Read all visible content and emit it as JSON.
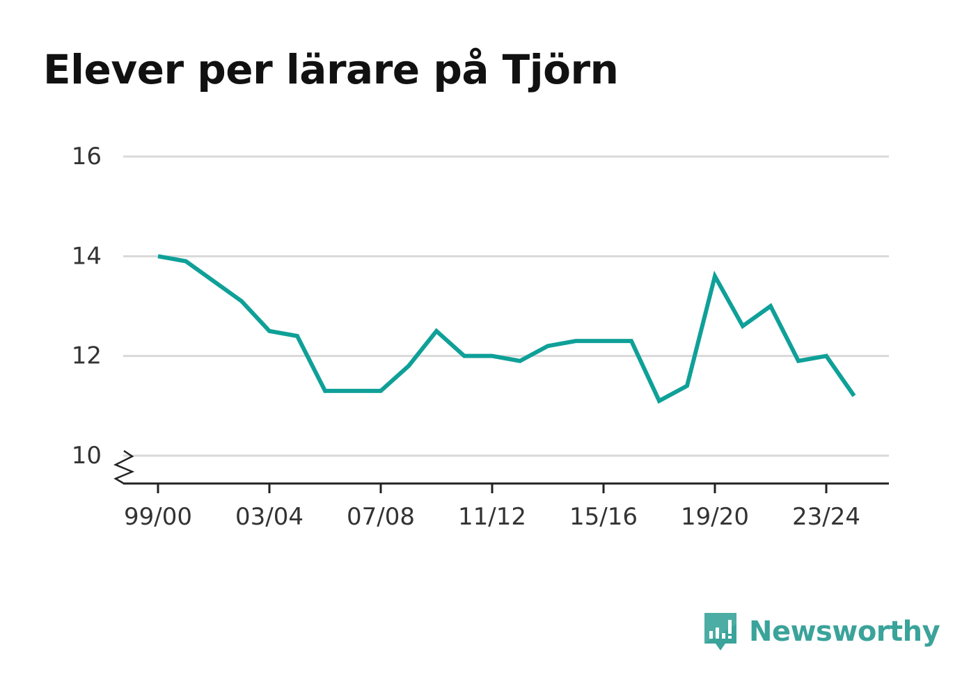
{
  "title": "Elever per lärare på Tjörn",
  "brand": {
    "name": "Newsworthy",
    "color": "#3aa39a"
  },
  "colors": {
    "line": "#0fa098",
    "grid": "#d9d9d9",
    "axis": "#222222",
    "tick_text": "#333333"
  },
  "chart_data": {
    "type": "line",
    "title": "Elever per lärare på Tjörn",
    "xlabel": "",
    "ylabel": "",
    "x": [
      "99/00",
      "00/01",
      "01/02",
      "02/03",
      "03/04",
      "04/05",
      "05/06",
      "06/07",
      "07/08",
      "08/09",
      "09/10",
      "10/11",
      "11/12",
      "12/13",
      "13/14",
      "14/15",
      "15/16",
      "16/17",
      "17/18",
      "18/19",
      "19/20",
      "20/21",
      "21/22",
      "22/23",
      "23/24",
      "24/25"
    ],
    "x_tick_labels": [
      "99/00",
      "03/04",
      "07/08",
      "11/12",
      "15/16",
      "19/20",
      "23/24"
    ],
    "series": [
      {
        "values": [
          14.0,
          13.9,
          13.5,
          13.1,
          12.5,
          12.4,
          11.3,
          11.3,
          11.3,
          11.8,
          12.5,
          12.0,
          12.0,
          11.9,
          12.2,
          12.3,
          12.3,
          12.3,
          11.1,
          11.4,
          13.6,
          12.6,
          13.0,
          11.9,
          12.0,
          11.2
        ]
      }
    ],
    "yticks": [
      10,
      12,
      14,
      16
    ],
    "ylim": [
      10,
      16
    ],
    "axis_break": true,
    "grid": true,
    "legend": "none"
  }
}
